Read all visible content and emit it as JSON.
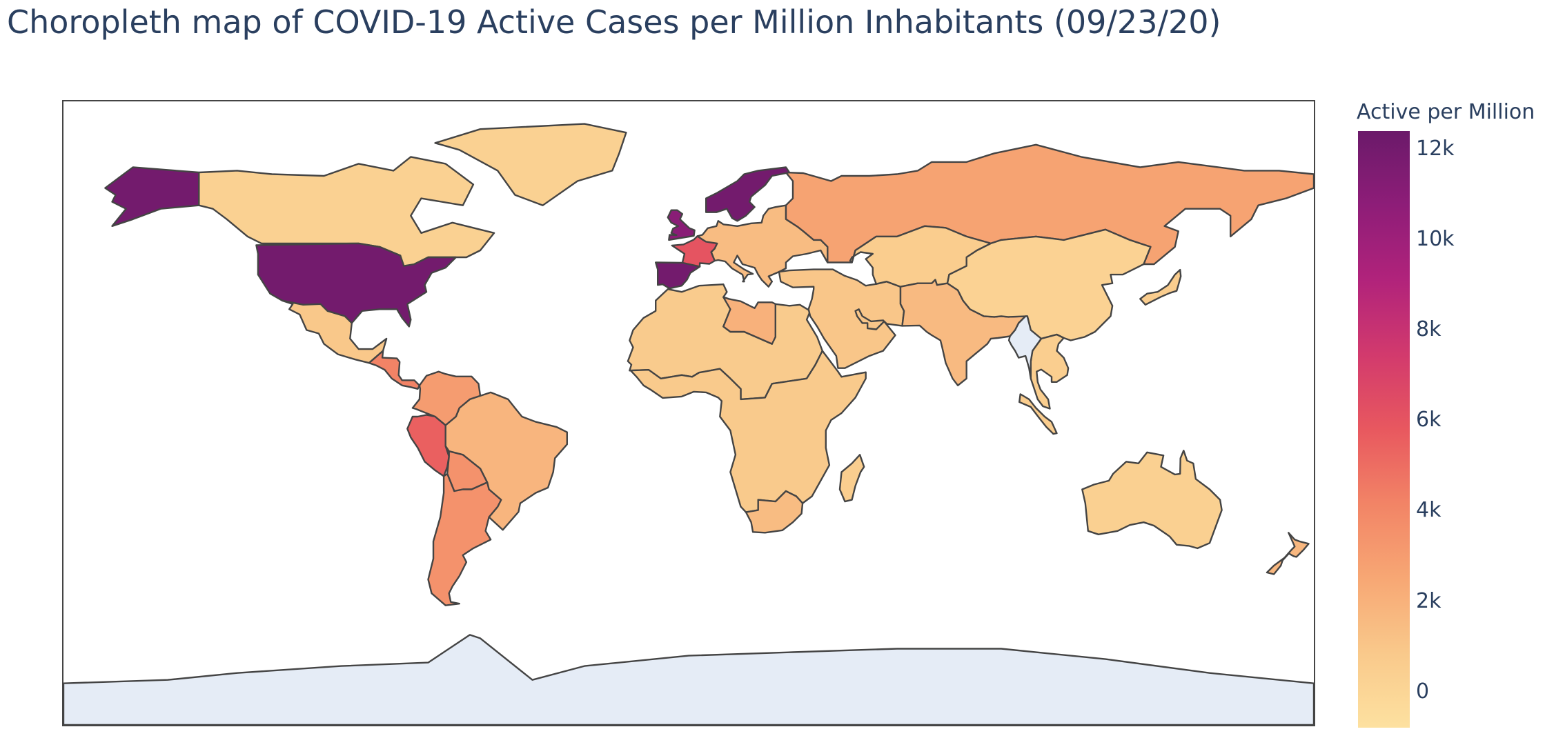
{
  "title": "Choropleth map of COVID-19 Active Cases per Million Inhabitants (09/23/20)",
  "colorbar": {
    "title": "Active per Million",
    "min": -800,
    "max": 12400,
    "colorscale": [
      "#fde1a0",
      "#f9c98b",
      "#f7a774",
      "#f28466",
      "#e8585f",
      "#d23a6d",
      "#b1237b",
      "#8e1d78",
      "#6b1a6a"
    ],
    "ticks": [
      {
        "value": 12000,
        "label": "12k"
      },
      {
        "value": 10000,
        "label": "10k"
      },
      {
        "value": 8000,
        "label": "8k"
      },
      {
        "value": 6000,
        "label": "6k"
      },
      {
        "value": 4000,
        "label": "4k"
      },
      {
        "value": 2000,
        "label": "2k"
      },
      {
        "value": 0,
        "label": "0"
      }
    ]
  },
  "map": {
    "projection": "equirectangular",
    "no_data_color": "#e5ecf6",
    "border_color": "#444444",
    "lonaxis_range": [
      -180,
      180
    ],
    "lataxis_range": [
      -90,
      90
    ]
  },
  "regions": [
    {
      "name": "Canada",
      "value": 300
    },
    {
      "name": "Greenland",
      "value": 300
    },
    {
      "name": "United States",
      "value": 12000
    },
    {
      "name": "Alaska",
      "value": 12000
    },
    {
      "name": "Mexico",
      "value": 900
    },
    {
      "name": "Central America",
      "value": 4200
    },
    {
      "name": "Colombia & Venezuela",
      "value": 3000
    },
    {
      "name": "Peru",
      "value": 5500
    },
    {
      "name": "Brazil",
      "value": 1800
    },
    {
      "name": "Bolivia",
      "value": 3500
    },
    {
      "name": "Chile & Argentina",
      "value": 3500
    },
    {
      "name": "Russia",
      "value": 2700
    },
    {
      "name": "Scandinavia",
      "value": 12000
    },
    {
      "name": "United Kingdom",
      "value": 11000
    },
    {
      "name": "France",
      "value": 6000
    },
    {
      "name": "Spain",
      "value": 12000
    },
    {
      "name": "Europe",
      "value": 1500
    },
    {
      "name": "North Africa",
      "value": 700
    },
    {
      "name": "Libya",
      "value": 2000
    },
    {
      "name": "Sub-Saharan Africa",
      "value": 800
    },
    {
      "name": "South Africa",
      "value": 1500
    },
    {
      "name": "Madagascar",
      "value": 500
    },
    {
      "name": "Middle East",
      "value": 1000
    },
    {
      "name": "Central Asia",
      "value": 600
    },
    {
      "name": "India",
      "value": 1600
    },
    {
      "name": "China",
      "value": 200
    },
    {
      "name": "Southeast Asia",
      "value": 500
    },
    {
      "name": "Indonesia",
      "value": 600
    },
    {
      "name": "Australia",
      "value": 400
    },
    {
      "name": "New Zealand",
      "value": 1700
    },
    {
      "name": "Japan",
      "value": 600
    },
    {
      "name": "Myanmar",
      "value": null
    },
    {
      "name": "Antarctica",
      "value": null
    }
  ]
}
